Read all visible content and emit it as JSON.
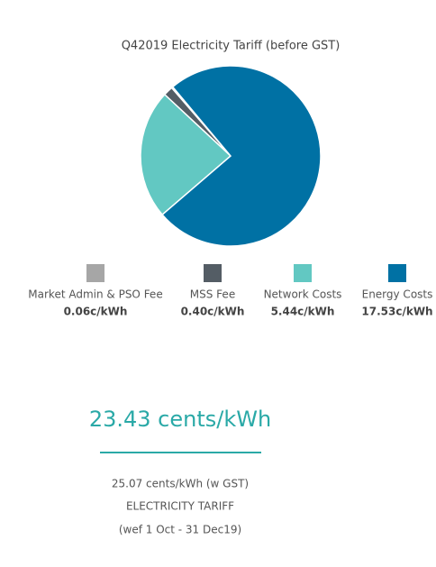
{
  "chart_data": {
    "type": "pie",
    "title": "Q42019 Electricity Tariff (before GST)",
    "categories": [
      "Market Admin & PSO Fee",
      "MSS Fee",
      "Network Costs",
      "Energy Costs"
    ],
    "values": [
      0.06,
      0.4,
      5.44,
      17.53
    ],
    "value_labels": [
      "0.06c/kWh",
      "0.40c/kWh",
      "5.44c/kWh",
      "17.53c/kWh"
    ],
    "colors": [
      "#a6a6a6",
      "#545d65",
      "#62c8c2",
      "#0071a4"
    ]
  },
  "summary": {
    "total": "23.43 cents/kWh",
    "with_gst": "25.07 cents/kWh (w GST)",
    "label": "ELECTRICITY TARIFF",
    "period": "(wef 1 Oct - 31 Dec19)"
  }
}
